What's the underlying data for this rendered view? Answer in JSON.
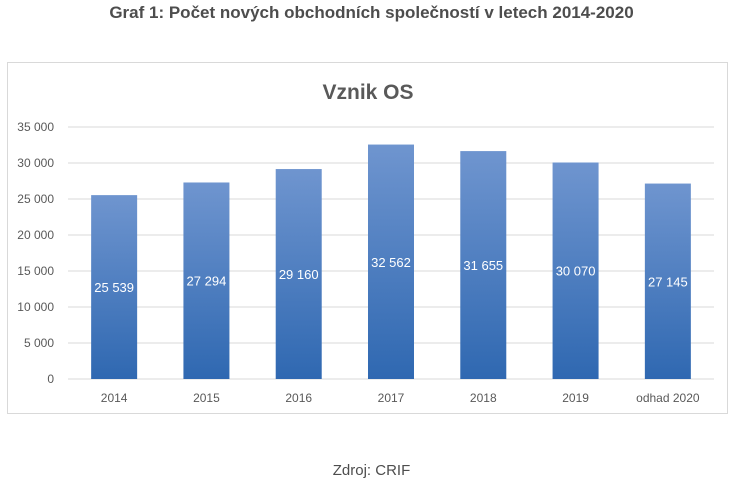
{
  "heading": "Graf 1: Počet nových obchodních společností v letech 2014-2020",
  "source": "Zdroj: CRIF",
  "colors": {
    "bar_top": "#6f95cf",
    "bar_bottom": "#2f68b1",
    "grid": "#d9d9d9",
    "axis_text": "#595959",
    "label_text": "#ffffff"
  },
  "chart_data": {
    "type": "bar",
    "title": "Vznik OS",
    "categories": [
      "2014",
      "2015",
      "2016",
      "2017",
      "2018",
      "2019",
      "odhad 2020"
    ],
    "values": [
      25539,
      27294,
      29160,
      32562,
      31655,
      30070,
      27145
    ],
    "data_labels": [
      "25 539",
      "27 294",
      "29 160",
      "32 562",
      "31 655",
      "30 070",
      "27 145"
    ],
    "yticks": [
      "0",
      "5 000",
      "10 000",
      "15 000",
      "20 000",
      "25 000",
      "30 000",
      "35 000"
    ],
    "ylim": [
      0,
      35000
    ],
    "xlabel": "",
    "ylabel": "",
    "grid": true,
    "legend": "none"
  }
}
